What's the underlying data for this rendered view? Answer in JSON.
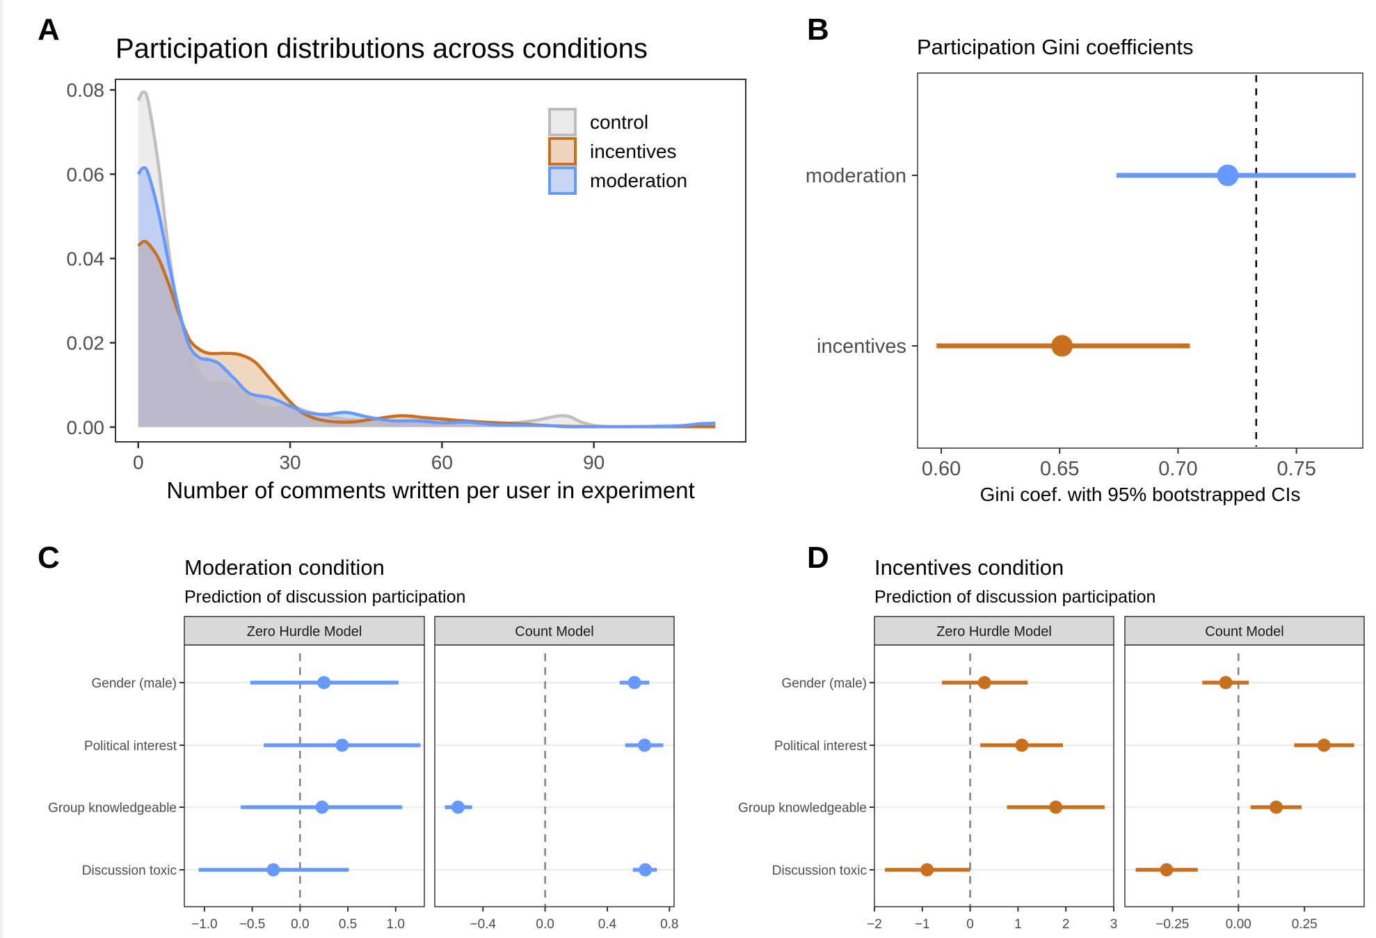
{
  "colors": {
    "control": "#bdbdbd",
    "control_fill": "#ebebeb",
    "incentives": "#c8701e",
    "incentives_fill": "#efd5bf",
    "moderation": "#6699ff",
    "moderation_fill": "#c6d6f3",
    "overlap_fill": "#bdb8c8",
    "strip_bg": "#d9d9d9",
    "gridline": "#ebebeb",
    "refline": "#808080"
  },
  "panels": {
    "A": {
      "letter": "A"
    },
    "B": {
      "letter": "B"
    },
    "C": {
      "letter": "C"
    },
    "D": {
      "letter": "D"
    }
  },
  "chart_data": [
    {
      "id": "A",
      "type": "area",
      "title": "Participation distributions across conditions",
      "xlabel": "Number of comments written per user in experiment",
      "ylabel": "",
      "xlim": [
        -4.5,
        120
      ],
      "ylim": [
        -0.0035,
        0.0825
      ],
      "xticks": [
        0,
        30,
        60,
        90
      ],
      "xtick_labels": [
        "0",
        "30",
        "60",
        "90"
      ],
      "yticks": [
        0,
        0.02,
        0.04,
        0.06,
        0.08
      ],
      "ytick_labels": [
        "0.00",
        "0.02",
        "0.04",
        "0.06",
        "0.08"
      ],
      "grid": false,
      "legend": {
        "position": "top-right",
        "entries": [
          "control",
          "incentives",
          "moderation"
        ]
      },
      "series": [
        {
          "name": "control",
          "x": [
            0,
            1,
            2,
            4,
            6,
            8,
            10,
            12,
            14,
            17,
            20,
            23,
            26,
            30,
            34,
            40,
            45,
            50,
            55,
            60,
            66,
            72,
            78,
            84,
            88,
            92,
            100,
            110,
            114
          ],
          "y": [
            0.0775,
            0.0795,
            0.077,
            0.062,
            0.042,
            0.027,
            0.019,
            0.013,
            0.0105,
            0.0105,
            0.009,
            0.006,
            0.0045,
            0.005,
            0.0035,
            0.002,
            0.0015,
            0.0012,
            0.0015,
            0.002,
            0.001,
            0.0008,
            0.0015,
            0.0027,
            0.001,
            0.0002,
            0.0002,
            0.0004,
            0.0005
          ]
        },
        {
          "name": "incentives",
          "x": [
            0,
            1,
            2,
            4,
            6,
            8,
            10,
            12,
            14,
            17,
            20,
            23,
            26,
            30,
            33,
            37,
            42,
            47,
            52,
            57,
            62,
            68,
            75,
            82,
            90,
            100,
            114
          ],
          "y": [
            0.043,
            0.044,
            0.0435,
            0.04,
            0.034,
            0.027,
            0.021,
            0.0185,
            0.0175,
            0.0175,
            0.0172,
            0.0155,
            0.0115,
            0.006,
            0.003,
            0.0015,
            0.0012,
            0.002,
            0.0027,
            0.0022,
            0.0017,
            0.0012,
            0.0008,
            0.0003,
            0.0001,
            0.0001,
            0.0001
          ]
        },
        {
          "name": "moderation",
          "x": [
            0,
            1,
            2,
            4,
            6,
            8,
            10,
            12,
            14,
            16,
            19,
            22,
            26,
            30,
            33,
            37,
            41,
            45,
            50,
            55,
            60,
            65,
            70,
            75,
            80,
            85,
            90,
            100,
            107,
            111,
            114
          ],
          "y": [
            0.06,
            0.0615,
            0.06,
            0.051,
            0.039,
            0.028,
            0.0195,
            0.0165,
            0.016,
            0.015,
            0.0115,
            0.008,
            0.007,
            0.005,
            0.0035,
            0.003,
            0.0035,
            0.0025,
            0.0015,
            0.0015,
            0.001,
            0.0012,
            0.0006,
            0.0005,
            0.0004,
            0.0001,
            0.0001,
            0.0001,
            0.0003,
            0.0008,
            0.0009
          ]
        }
      ]
    },
    {
      "id": "B",
      "type": "scatter",
      "subtype": "pointrange",
      "title": "Participation Gini coefficients",
      "xlabel": "Gini coef. with 95% bootstrapped CIs",
      "ylabel": "",
      "xlim": [
        0.59,
        0.778
      ],
      "xticks": [
        0.6,
        0.65,
        0.7,
        0.75
      ],
      "xtick_labels": [
        "0.60",
        "0.65",
        "0.70",
        "0.75"
      ],
      "categories": [
        "moderation",
        "incentives"
      ],
      "reference_line": 0.733,
      "grid": false,
      "series": [
        {
          "name": "moderation",
          "estimate": 0.721,
          "lower": 0.674,
          "upper": 0.775
        },
        {
          "name": "incentives",
          "estimate": 0.651,
          "lower": 0.598,
          "upper": 0.705
        }
      ]
    },
    {
      "id": "C",
      "type": "scatter",
      "subtype": "coefficient-plot",
      "title": "Moderation condition",
      "subtitle": "Prediction of discussion participation",
      "condition": "moderation",
      "categories": [
        "Gender (male)",
        "Political interest",
        "Group knowledgeable",
        "Discussion toxic"
      ],
      "facets": [
        {
          "name": "Zero Hurdle Model",
          "xlim": [
            -1.21,
            1.3
          ],
          "xticks": [
            -1.0,
            -0.5,
            0.0,
            0.5,
            1.0
          ],
          "xtick_labels": [
            "−1.0",
            "−0.5",
            "0.0",
            "0.5",
            "1.0"
          ],
          "reference_line": 0,
          "points": [
            {
              "label": "Gender (male)",
              "estimate": 0.25,
              "lower": -0.52,
              "upper": 1.03
            },
            {
              "label": "Political interest",
              "estimate": 0.44,
              "lower": -0.38,
              "upper": 1.26
            },
            {
              "label": "Group knowledgeable",
              "estimate": 0.23,
              "lower": -0.62,
              "upper": 1.07
            },
            {
              "label": "Discussion toxic",
              "estimate": -0.28,
              "lower": -1.06,
              "upper": 0.51
            }
          ]
        },
        {
          "name": "Count Model",
          "xlim": [
            -0.71,
            0.83
          ],
          "xticks": [
            -0.4,
            0.0,
            0.4,
            0.8
          ],
          "xtick_labels": [
            "−0.4",
            "0.0",
            "0.4",
            "0.8"
          ],
          "reference_line": 0,
          "points": [
            {
              "label": "Gender (male)",
              "estimate": 0.575,
              "lower": 0.48,
              "upper": 0.67
            },
            {
              "label": "Political interest",
              "estimate": 0.64,
              "lower": 0.515,
              "upper": 0.76
            },
            {
              "label": "Group knowledgeable",
              "estimate": -0.56,
              "lower": -0.645,
              "upper": -0.47
            },
            {
              "label": "Discussion toxic",
              "estimate": 0.645,
              "lower": 0.565,
              "upper": 0.72
            }
          ]
        }
      ]
    },
    {
      "id": "D",
      "type": "scatter",
      "subtype": "coefficient-plot",
      "title": "Incentives condition",
      "subtitle": "Prediction of discussion participation",
      "condition": "incentives",
      "categories": [
        "Gender (male)",
        "Political interest",
        "Group knowledgeable",
        "Discussion toxic"
      ],
      "facets": [
        {
          "name": "Zero Hurdle Model",
          "xlim": [
            -2,
            3
          ],
          "xticks": [
            -2,
            -1,
            0,
            1,
            2,
            3
          ],
          "xtick_labels": [
            "−2",
            "−1",
            "0",
            "1",
            "2",
            "3"
          ],
          "reference_line": 0,
          "points": [
            {
              "label": "Gender (male)",
              "estimate": 0.3,
              "lower": -0.59,
              "upper": 1.2
            },
            {
              "label": "Political interest",
              "estimate": 1.08,
              "lower": 0.21,
              "upper": 1.94
            },
            {
              "label": "Group knowledgeable",
              "estimate": 1.79,
              "lower": 0.77,
              "upper": 2.81
            },
            {
              "label": "Discussion toxic",
              "estimate": -0.9,
              "lower": -1.78,
              "upper": 0.0
            }
          ]
        },
        {
          "name": "Count Model",
          "xlim": [
            -0.43,
            0.476
          ],
          "xticks": [
            -0.25,
            0.0,
            0.25
          ],
          "xtick_labels": [
            "−0.25",
            "0.00",
            "0.25"
          ],
          "reference_line": 0,
          "points": [
            {
              "label": "Gender (male)",
              "estimate": -0.048,
              "lower": -0.137,
              "upper": 0.039
            },
            {
              "label": "Political interest",
              "estimate": 0.324,
              "lower": 0.211,
              "upper": 0.438
            },
            {
              "label": "Group knowledgeable",
              "estimate": 0.143,
              "lower": 0.046,
              "upper": 0.239
            },
            {
              "label": "Discussion toxic",
              "estimate": -0.272,
              "lower": -0.389,
              "upper": -0.154
            }
          ]
        }
      ]
    }
  ]
}
